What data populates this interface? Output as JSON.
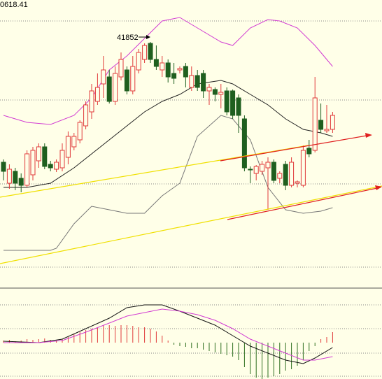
{
  "chart_data": [
    {
      "type": "candlestick",
      "title": "0618.41",
      "high_label": 41852,
      "open": [
        41680,
        41650,
        41667,
        41657,
        41647,
        41662,
        41682,
        41702,
        41677,
        41670,
        41672,
        41687,
        41702,
        41712,
        41732,
        41752,
        41767,
        41792,
        41802,
        41767,
        41802,
        41812,
        41782,
        41812,
        41827,
        41850,
        41827,
        41812,
        41822,
        41807,
        41812,
        41817,
        41787,
        41804,
        41807,
        41782,
        41784,
        41777,
        41782,
        41782,
        41772,
        41742,
        41670,
        41664,
        41667,
        41672,
        41680,
        41657,
        41677,
        41647,
        41650,
        41647,
        41700,
        41697,
        41740,
        41725,
        41727
      ],
      "high": [
        41684,
        41677,
        41672,
        41664,
        41697,
        41702,
        41707,
        41707,
        41682,
        41684,
        41707,
        41724,
        41722,
        41740,
        41767,
        41792,
        41807,
        41832,
        41812,
        41817,
        41837,
        41817,
        41832,
        41842,
        41850,
        41852,
        41847,
        41832,
        41827,
        41822,
        41817,
        41822,
        41817,
        41812,
        41812,
        41792,
        41787,
        41792,
        41787,
        41784,
        41777,
        41747,
        41674,
        41676,
        41682,
        41687,
        41684,
        41667,
        41682,
        41687,
        41654,
        41704,
        41712,
        41802,
        41764,
        41762,
        41752
      ],
      "low": [
        41654,
        41642,
        41640,
        41637,
        41644,
        41654,
        41672,
        41670,
        41667,
        41666,
        41667,
        41677,
        41697,
        41707,
        41727,
        41742,
        41762,
        41772,
        41764,
        41762,
        41797,
        41777,
        41777,
        41807,
        41822,
        41822,
        41812,
        41802,
        41794,
        41792,
        41807,
        41787,
        41782,
        41782,
        41772,
        41762,
        41767,
        41757,
        41747,
        41742,
        41722,
        41667,
        41650,
        41654,
        41662,
        41612,
        41650,
        41650,
        41640,
        41644,
        41644,
        41644,
        41687,
        41694,
        41722,
        41722,
        41722
      ],
      "close": [
        41667,
        41670,
        41650,
        41647,
        41692,
        41697,
        41702,
        41674,
        41672,
        41680,
        41697,
        41717,
        41717,
        41737,
        41762,
        41782,
        41787,
        41812,
        41767,
        41807,
        41827,
        41782,
        41817,
        41837,
        41847,
        41827,
        41817,
        41822,
        41802,
        41800,
        41814,
        41802,
        41804,
        41787,
        41782,
        41787,
        41777,
        41780,
        41752,
        41747,
        41747,
        41672,
        41669,
        41674,
        41677,
        41680,
        41654,
        41664,
        41647,
        41680,
        41652,
        41697,
        41692,
        41772,
        41727,
        41727,
        41747
      ],
      "up_color": "#e03a3a",
      "down_color": "#1f5f1f",
      "ylim": [
        41502,
        41912
      ],
      "lines": [
        {
          "color": "#d23cd2",
          "x": [
            0,
            4,
            8,
            12,
            15,
            18,
            21,
            24,
            27,
            30,
            33,
            37,
            39,
            42,
            45,
            47,
            50,
            53,
            56
          ],
          "values": [
            41747,
            41737,
            41734,
            41747,
            41772,
            41812,
            41832,
            41857,
            41882,
            41887,
            41872,
            41852,
            41847,
            41872,
            41884,
            41882,
            41872,
            41847,
            41817
          ]
        },
        {
          "color": "#222222",
          "x": [
            0,
            4,
            8,
            12,
            15,
            18,
            21,
            24,
            27,
            30,
            33,
            37,
            39,
            42,
            45,
            48,
            51,
            54,
            56
          ],
          "values": [
            41644,
            41644,
            41650,
            41672,
            41692,
            41712,
            41732,
            41752,
            41767,
            41777,
            41792,
            41797,
            41792,
            41777,
            41762,
            41742,
            41727,
            41722,
            41717
          ]
        },
        {
          "color": "#777777",
          "x": [
            0,
            4,
            8,
            9,
            12,
            15,
            18,
            21,
            24,
            27,
            30,
            33,
            37,
            39,
            42,
            45,
            48,
            51,
            54,
            56
          ],
          "values": [
            41554,
            41554,
            41554,
            41557,
            41592,
            41617,
            41612,
            41607,
            41607,
            41632,
            41650,
            41717,
            41747,
            41742,
            41712,
            41644,
            41612,
            41607,
            41610,
            41615
          ]
        }
      ]
    },
    {
      "type": "macd",
      "values": [
        3,
        4,
        2,
        3,
        5,
        4,
        5,
        6,
        4,
        3,
        5,
        8,
        12,
        15,
        18,
        20,
        22,
        25,
        25,
        24,
        25,
        25,
        24,
        22,
        22,
        20,
        16,
        10,
        3,
        -3,
        -5,
        -6,
        -8,
        -8,
        -10,
        -12,
        -14,
        -16,
        -18,
        -20,
        -25,
        -35,
        -45,
        -50,
        -52,
        -50,
        -48,
        -45,
        -40,
        -38,
        -33,
        -25,
        -12,
        -5,
        5,
        8,
        15
      ],
      "up_color": "#e03a3a",
      "down_color": "#2f6f1f",
      "ylim": [
        -52,
        78
      ],
      "lines": [
        {
          "color": "#111111",
          "x": [
            0,
            6,
            10,
            14,
            18,
            21,
            24,
            27,
            30,
            33,
            36,
            39,
            42,
            45,
            48,
            51,
            53,
            56
          ],
          "values": [
            2,
            0,
            5,
            20,
            35,
            50,
            54,
            54,
            45,
            35,
            25,
            10,
            -5,
            -15,
            -25,
            -30,
            -22,
            -7
          ]
        },
        {
          "color": "#d23cd2",
          "x": [
            0,
            6,
            10,
            14,
            18,
            21,
            24,
            27,
            30,
            33,
            36,
            39,
            42,
            45,
            48,
            51,
            53,
            56
          ],
          "values": [
            0,
            0,
            3,
            15,
            28,
            38,
            43,
            48,
            45,
            40,
            32,
            20,
            5,
            -5,
            -15,
            -25,
            -25,
            -20
          ]
        }
      ]
    }
  ]
}
